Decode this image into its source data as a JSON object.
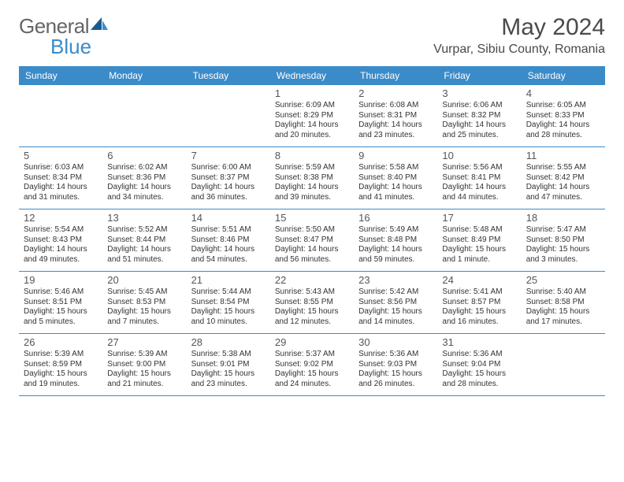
{
  "logo": {
    "part1": "General",
    "part2": "Blue"
  },
  "header": {
    "month": "May 2024",
    "location": "Vurpar, Sibiu County, Romania"
  },
  "colors": {
    "brand": "#3b8bc9",
    "text": "#4a4a4a"
  },
  "daynames": [
    "Sunday",
    "Monday",
    "Tuesday",
    "Wednesday",
    "Thursday",
    "Friday",
    "Saturday"
  ],
  "weeks": [
    [
      {
        "n": "",
        "sr": "",
        "ss": "",
        "dl1": "",
        "dl2": ""
      },
      {
        "n": "",
        "sr": "",
        "ss": "",
        "dl1": "",
        "dl2": ""
      },
      {
        "n": "",
        "sr": "",
        "ss": "",
        "dl1": "",
        "dl2": ""
      },
      {
        "n": "1",
        "sr": "Sunrise: 6:09 AM",
        "ss": "Sunset: 8:29 PM",
        "dl1": "Daylight: 14 hours",
        "dl2": "and 20 minutes."
      },
      {
        "n": "2",
        "sr": "Sunrise: 6:08 AM",
        "ss": "Sunset: 8:31 PM",
        "dl1": "Daylight: 14 hours",
        "dl2": "and 23 minutes."
      },
      {
        "n": "3",
        "sr": "Sunrise: 6:06 AM",
        "ss": "Sunset: 8:32 PM",
        "dl1": "Daylight: 14 hours",
        "dl2": "and 25 minutes."
      },
      {
        "n": "4",
        "sr": "Sunrise: 6:05 AM",
        "ss": "Sunset: 8:33 PM",
        "dl1": "Daylight: 14 hours",
        "dl2": "and 28 minutes."
      }
    ],
    [
      {
        "n": "5",
        "sr": "Sunrise: 6:03 AM",
        "ss": "Sunset: 8:34 PM",
        "dl1": "Daylight: 14 hours",
        "dl2": "and 31 minutes."
      },
      {
        "n": "6",
        "sr": "Sunrise: 6:02 AM",
        "ss": "Sunset: 8:36 PM",
        "dl1": "Daylight: 14 hours",
        "dl2": "and 34 minutes."
      },
      {
        "n": "7",
        "sr": "Sunrise: 6:00 AM",
        "ss": "Sunset: 8:37 PM",
        "dl1": "Daylight: 14 hours",
        "dl2": "and 36 minutes."
      },
      {
        "n": "8",
        "sr": "Sunrise: 5:59 AM",
        "ss": "Sunset: 8:38 PM",
        "dl1": "Daylight: 14 hours",
        "dl2": "and 39 minutes."
      },
      {
        "n": "9",
        "sr": "Sunrise: 5:58 AM",
        "ss": "Sunset: 8:40 PM",
        "dl1": "Daylight: 14 hours",
        "dl2": "and 41 minutes."
      },
      {
        "n": "10",
        "sr": "Sunrise: 5:56 AM",
        "ss": "Sunset: 8:41 PM",
        "dl1": "Daylight: 14 hours",
        "dl2": "and 44 minutes."
      },
      {
        "n": "11",
        "sr": "Sunrise: 5:55 AM",
        "ss": "Sunset: 8:42 PM",
        "dl1": "Daylight: 14 hours",
        "dl2": "and 47 minutes."
      }
    ],
    [
      {
        "n": "12",
        "sr": "Sunrise: 5:54 AM",
        "ss": "Sunset: 8:43 PM",
        "dl1": "Daylight: 14 hours",
        "dl2": "and 49 minutes."
      },
      {
        "n": "13",
        "sr": "Sunrise: 5:52 AM",
        "ss": "Sunset: 8:44 PM",
        "dl1": "Daylight: 14 hours",
        "dl2": "and 51 minutes."
      },
      {
        "n": "14",
        "sr": "Sunrise: 5:51 AM",
        "ss": "Sunset: 8:46 PM",
        "dl1": "Daylight: 14 hours",
        "dl2": "and 54 minutes."
      },
      {
        "n": "15",
        "sr": "Sunrise: 5:50 AM",
        "ss": "Sunset: 8:47 PM",
        "dl1": "Daylight: 14 hours",
        "dl2": "and 56 minutes."
      },
      {
        "n": "16",
        "sr": "Sunrise: 5:49 AM",
        "ss": "Sunset: 8:48 PM",
        "dl1": "Daylight: 14 hours",
        "dl2": "and 59 minutes."
      },
      {
        "n": "17",
        "sr": "Sunrise: 5:48 AM",
        "ss": "Sunset: 8:49 PM",
        "dl1": "Daylight: 15 hours",
        "dl2": "and 1 minute."
      },
      {
        "n": "18",
        "sr": "Sunrise: 5:47 AM",
        "ss": "Sunset: 8:50 PM",
        "dl1": "Daylight: 15 hours",
        "dl2": "and 3 minutes."
      }
    ],
    [
      {
        "n": "19",
        "sr": "Sunrise: 5:46 AM",
        "ss": "Sunset: 8:51 PM",
        "dl1": "Daylight: 15 hours",
        "dl2": "and 5 minutes."
      },
      {
        "n": "20",
        "sr": "Sunrise: 5:45 AM",
        "ss": "Sunset: 8:53 PM",
        "dl1": "Daylight: 15 hours",
        "dl2": "and 7 minutes."
      },
      {
        "n": "21",
        "sr": "Sunrise: 5:44 AM",
        "ss": "Sunset: 8:54 PM",
        "dl1": "Daylight: 15 hours",
        "dl2": "and 10 minutes."
      },
      {
        "n": "22",
        "sr": "Sunrise: 5:43 AM",
        "ss": "Sunset: 8:55 PM",
        "dl1": "Daylight: 15 hours",
        "dl2": "and 12 minutes."
      },
      {
        "n": "23",
        "sr": "Sunrise: 5:42 AM",
        "ss": "Sunset: 8:56 PM",
        "dl1": "Daylight: 15 hours",
        "dl2": "and 14 minutes."
      },
      {
        "n": "24",
        "sr": "Sunrise: 5:41 AM",
        "ss": "Sunset: 8:57 PM",
        "dl1": "Daylight: 15 hours",
        "dl2": "and 16 minutes."
      },
      {
        "n": "25",
        "sr": "Sunrise: 5:40 AM",
        "ss": "Sunset: 8:58 PM",
        "dl1": "Daylight: 15 hours",
        "dl2": "and 17 minutes."
      }
    ],
    [
      {
        "n": "26",
        "sr": "Sunrise: 5:39 AM",
        "ss": "Sunset: 8:59 PM",
        "dl1": "Daylight: 15 hours",
        "dl2": "and 19 minutes."
      },
      {
        "n": "27",
        "sr": "Sunrise: 5:39 AM",
        "ss": "Sunset: 9:00 PM",
        "dl1": "Daylight: 15 hours",
        "dl2": "and 21 minutes."
      },
      {
        "n": "28",
        "sr": "Sunrise: 5:38 AM",
        "ss": "Sunset: 9:01 PM",
        "dl1": "Daylight: 15 hours",
        "dl2": "and 23 minutes."
      },
      {
        "n": "29",
        "sr": "Sunrise: 5:37 AM",
        "ss": "Sunset: 9:02 PM",
        "dl1": "Daylight: 15 hours",
        "dl2": "and 24 minutes."
      },
      {
        "n": "30",
        "sr": "Sunrise: 5:36 AM",
        "ss": "Sunset: 9:03 PM",
        "dl1": "Daylight: 15 hours",
        "dl2": "and 26 minutes."
      },
      {
        "n": "31",
        "sr": "Sunrise: 5:36 AM",
        "ss": "Sunset: 9:04 PM",
        "dl1": "Daylight: 15 hours",
        "dl2": "and 28 minutes."
      },
      {
        "n": "",
        "sr": "",
        "ss": "",
        "dl1": "",
        "dl2": ""
      }
    ]
  ]
}
